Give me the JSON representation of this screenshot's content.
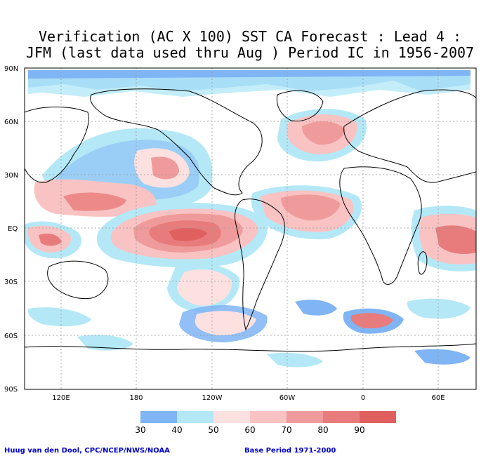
{
  "title": {
    "line1": "Verification (AC X 100) SST CA Forecast : Lead 4 :",
    "line2": "JFM (last data used thru Aug ) Period IC in 1956-2007"
  },
  "axes": {
    "lat_labels": [
      "90N",
      "60N",
      "30N",
      "EQ",
      "30S",
      "60S",
      "90S"
    ],
    "lon_labels": [
      "120E",
      "180",
      "120W",
      "60W",
      "0",
      "60E"
    ]
  },
  "legend": {
    "levels": [
      "30",
      "40",
      "50",
      "60",
      "70",
      "80",
      "90"
    ],
    "colors": [
      "#7fb4f5",
      "#b4e8f7",
      "#fde1e1",
      "#f9c3c3",
      "#f09b9b",
      "#e87c7c",
      "#e06060"
    ]
  },
  "footer": {
    "credit": "Huug van den Dool, CPC/NCEP/NWS/NOAA",
    "base_period": "Base Period 1971-2000"
  },
  "colors": {
    "accent_text": "#0000cc",
    "continent_outline": "#000000",
    "grid": "#999999"
  }
}
